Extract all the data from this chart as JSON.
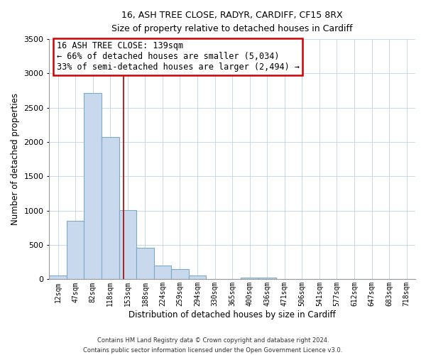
{
  "title1": "16, ASH TREE CLOSE, RADYR, CARDIFF, CF15 8RX",
  "title2": "Size of property relative to detached houses in Cardiff",
  "xlabel": "Distribution of detached houses by size in Cardiff",
  "ylabel": "Number of detached properties",
  "bar_labels": [
    "12sqm",
    "47sqm",
    "82sqm",
    "118sqm",
    "153sqm",
    "188sqm",
    "224sqm",
    "259sqm",
    "294sqm",
    "330sqm",
    "365sqm",
    "400sqm",
    "436sqm",
    "471sqm",
    "506sqm",
    "541sqm",
    "577sqm",
    "612sqm",
    "647sqm",
    "683sqm",
    "718sqm"
  ],
  "bar_values": [
    55,
    850,
    2720,
    2070,
    1005,
    455,
    205,
    145,
    60,
    0,
    0,
    30,
    20,
    0,
    0,
    0,
    0,
    0,
    0,
    0,
    0
  ],
  "bar_color": "#c8d9ed",
  "bar_edge_color": "#7aaac8",
  "vline_x_index": 3.77,
  "vline_color": "#aa0000",
  "annotation_title": "16 ASH TREE CLOSE: 139sqm",
  "annotation_line1": "← 66% of detached houses are smaller (5,034)",
  "annotation_line2": "33% of semi-detached houses are larger (2,494) →",
  "ylim": [
    0,
    3500
  ],
  "yticks": [
    0,
    500,
    1000,
    1500,
    2000,
    2500,
    3000,
    3500
  ],
  "footer1": "Contains HM Land Registry data © Crown copyright and database right 2024.",
  "footer2": "Contains public sector information licensed under the Open Government Licence v3.0.",
  "grid_color": "#c8d8e8"
}
